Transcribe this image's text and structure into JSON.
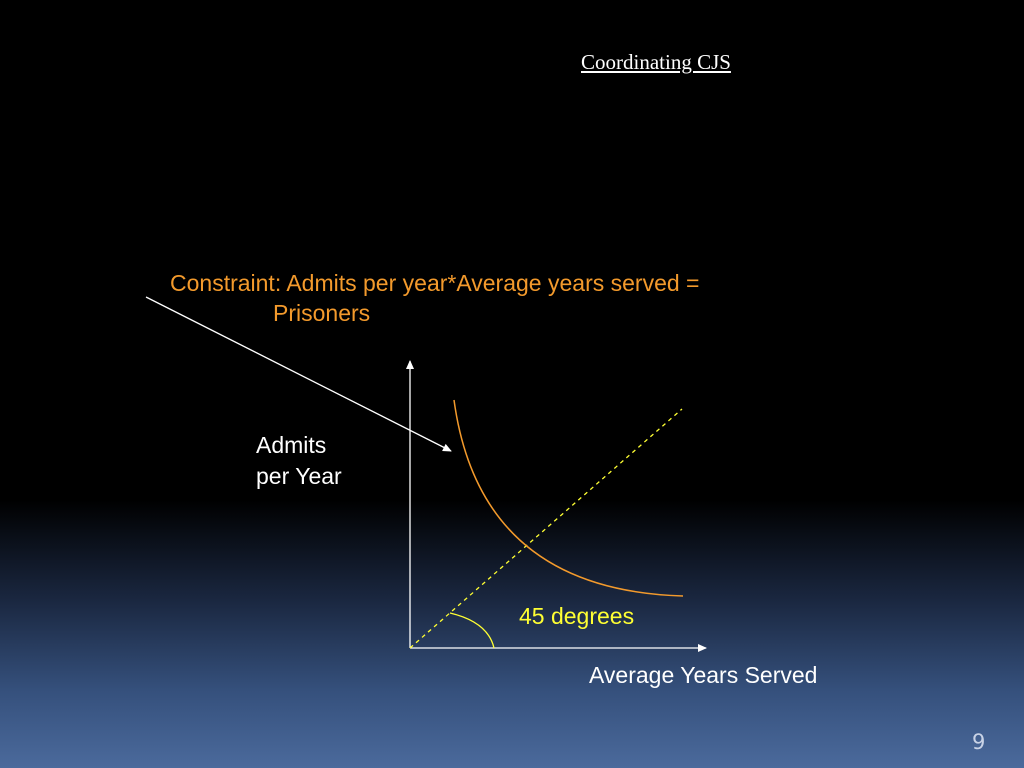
{
  "slide": {
    "title": "Coordinating CJS",
    "slide_number": "9"
  },
  "diagram": {
    "constraint_line1": "Constraint: Admits per year*Average years served =",
    "constraint_line2": "Prisoners",
    "y_axis_line1": "Admits",
    "y_axis_line2": "per Year",
    "x_axis_label": "Average Years Served",
    "angle_label": "45 degrees",
    "colors": {
      "curve": "#f39a2c",
      "diagonal": "#ffff33",
      "axes": "#ffffff",
      "constraint_text": "#f39a2c"
    }
  }
}
